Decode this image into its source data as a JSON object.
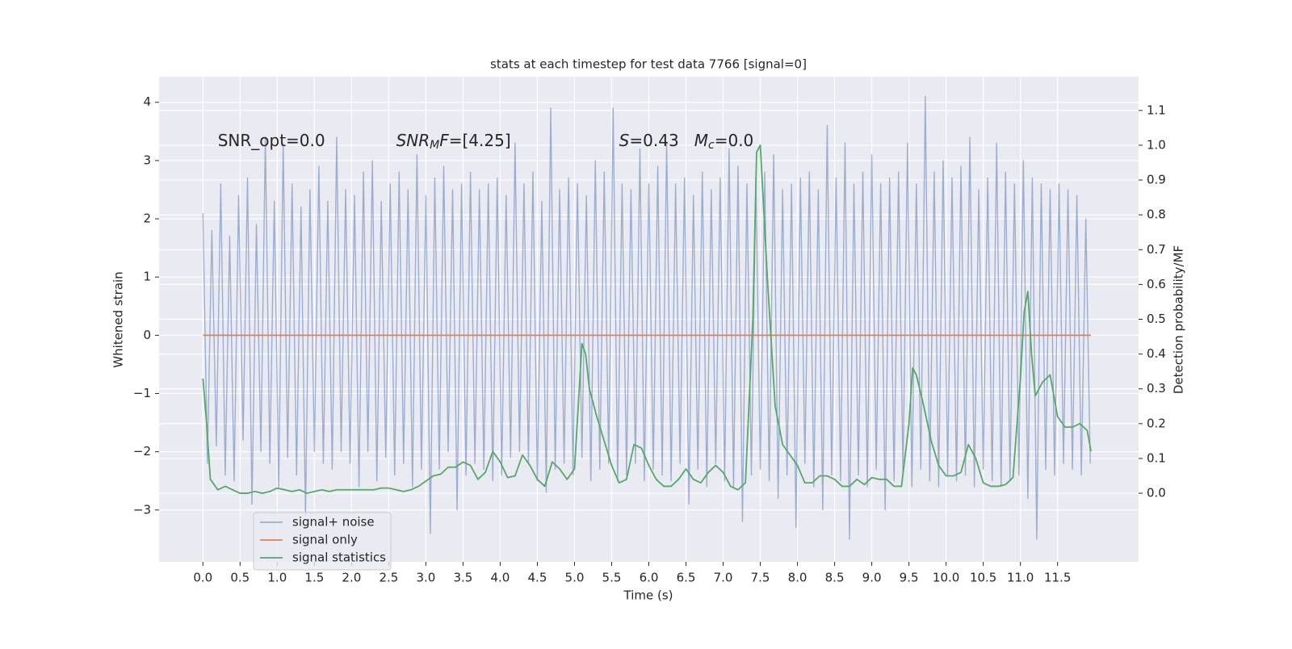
{
  "chart_data": {
    "type": "line",
    "title": "stats at each timestep for test data 7766 [signal=0]",
    "xlabel": "Time (s)",
    "ylabel": "Whitened strain",
    "y2label": "Detection probability/MF",
    "grid": true,
    "legend": "lower left",
    "xlim": [
      -0.59,
      12.59
    ],
    "ylim": [
      -3.89,
      4.44
    ],
    "y2lim": [
      -0.197,
      1.197
    ],
    "xticks": [
      {
        "value": 0,
        "label": "0.0"
      },
      0.5,
      {
        "value": 1,
        "label": "1.0"
      },
      1.5,
      {
        "value": 2,
        "label": "2.0"
      },
      2.5,
      {
        "value": 3,
        "label": "3.0"
      },
      3.5,
      {
        "value": 4,
        "label": "4.0"
      },
      4.5,
      {
        "value": 5,
        "label": "5.0"
      },
      5.5,
      {
        "value": 6,
        "label": "6.0"
      },
      6.5,
      {
        "value": 7,
        "label": "7.0"
      },
      7.5,
      {
        "value": 8,
        "label": "8.0"
      },
      8.5,
      {
        "value": 9,
        "label": "9.0"
      },
      9.5,
      {
        "value": 10,
        "label": "10.0"
      },
      10.5,
      {
        "value": 11,
        "label": "11.0"
      },
      11.5
    ],
    "yticks": [
      {
        "value": -3,
        "label": "−3"
      },
      {
        "value": -2,
        "label": "−2"
      },
      {
        "value": -1,
        "label": "−1"
      },
      0,
      1,
      2,
      3,
      4
    ],
    "y2ticks": [
      {
        "value": 0,
        "label": "0.0"
      },
      0.1,
      0.2,
      0.3,
      0.4,
      0.5,
      0.6,
      0.7,
      0.8,
      0.9,
      {
        "value": 1,
        "label": "1.0"
      },
      1.1
    ],
    "annotations": [
      {
        "x": 0.2,
        "y": 3.33,
        "parts": [
          {
            "text": "SNR_opt=0.0",
            "style": "normal"
          }
        ]
      },
      {
        "x": 2.6,
        "y": 3.33,
        "parts": [
          {
            "text": "SNR",
            "style": "italic"
          },
          {
            "text": "M",
            "style": "italic-sub"
          },
          {
            "text": "F",
            "style": "italic"
          },
          {
            "text": "=[4.25]",
            "style": "normal"
          }
        ]
      },
      {
        "x": 5.6,
        "y": 3.33,
        "parts": [
          {
            "text": "S",
            "style": "italic"
          },
          {
            "text": "=0.43   ",
            "style": "normal"
          },
          {
            "text": "M",
            "style": "italic"
          },
          {
            "text": "c",
            "style": "italic-sub"
          },
          {
            "text": "=0.0",
            "style": "normal"
          }
        ]
      }
    ],
    "series": [
      {
        "name": "signal+ noise",
        "color": "#4c72b0",
        "opacity": 0.5,
        "axis": "y",
        "x": [
          0,
          0.06,
          0.12,
          0.18,
          0.24,
          0.3,
          0.36,
          0.42,
          0.48,
          0.54,
          0.6,
          0.66,
          0.72,
          0.78,
          0.84,
          0.9,
          0.96,
          1.02,
          1.08,
          1.14,
          1.2,
          1.26,
          1.32,
          1.38,
          1.44,
          1.5,
          1.56,
          1.62,
          1.68,
          1.74,
          1.8,
          1.86,
          1.92,
          1.98,
          2.04,
          2.1,
          2.16,
          2.22,
          2.28,
          2.34,
          2.4,
          2.46,
          2.52,
          2.58,
          2.64,
          2.7,
          2.76,
          2.82,
          2.88,
          2.94,
          3,
          3.06,
          3.12,
          3.18,
          3.24,
          3.3,
          3.36,
          3.42,
          3.48,
          3.54,
          3.6,
          3.66,
          3.72,
          3.78,
          3.84,
          3.9,
          3.96,
          4.02,
          4.08,
          4.14,
          4.2,
          4.26,
          4.32,
          4.38,
          4.44,
          4.5,
          4.56,
          4.62,
          4.68,
          4.74,
          4.8,
          4.86,
          4.92,
          4.98,
          5.04,
          5.1,
          5.16,
          5.22,
          5.28,
          5.34,
          5.4,
          5.46,
          5.52,
          5.58,
          5.64,
          5.7,
          5.76,
          5.82,
          5.88,
          5.94,
          6,
          6.06,
          6.12,
          6.18,
          6.24,
          6.3,
          6.36,
          6.42,
          6.48,
          6.54,
          6.6,
          6.66,
          6.72,
          6.78,
          6.84,
          6.9,
          6.96,
          7.02,
          7.08,
          7.14,
          7.2,
          7.26,
          7.32,
          7.38,
          7.44,
          7.5,
          7.56,
          7.62,
          7.68,
          7.74,
          7.8,
          7.86,
          7.92,
          7.98,
          8.04,
          8.1,
          8.16,
          8.22,
          8.28,
          8.34,
          8.4,
          8.46,
          8.52,
          8.58,
          8.64,
          8.7,
          8.76,
          8.82,
          8.88,
          8.94,
          9,
          9.06,
          9.12,
          9.18,
          9.24,
          9.3,
          9.36,
          9.42,
          9.48,
          9.54,
          9.6,
          9.66,
          9.72,
          9.78,
          9.84,
          9.9,
          9.96,
          10.02,
          10.08,
          10.14,
          10.2,
          10.26,
          10.32,
          10.38,
          10.44,
          10.5,
          10.56,
          10.62,
          10.68,
          10.74,
          10.8,
          10.86,
          10.92,
          10.98,
          11.04,
          11.1,
          11.16,
          11.22,
          11.28,
          11.34,
          11.4,
          11.46,
          11.52,
          11.58,
          11.64,
          11.7,
          11.76,
          11.82,
          11.88,
          11.94
        ],
        "values": [
          2.1,
          -2.2,
          1.8,
          -1.9,
          2.6,
          -2.4,
          1.7,
          -2.5,
          2.4,
          -1.8,
          2.7,
          -2.9,
          1.9,
          -2.0,
          3.4,
          -2.2,
          2.3,
          -2.6,
          3.3,
          -2.1,
          2.6,
          -2.4,
          2.2,
          -3.1,
          2.5,
          -2.0,
          2.9,
          -2.2,
          2.3,
          -2.3,
          3.4,
          -2.0,
          2.5,
          -2.2,
          2.4,
          -2.6,
          2.8,
          -2.0,
          3.0,
          -2.5,
          2.3,
          -2.1,
          2.6,
          -2.4,
          2.8,
          -2.2,
          2.5,
          -2.6,
          3.1,
          -2.3,
          2.4,
          -3.4,
          2.7,
          -2.3,
          2.9,
          -2.0,
          2.5,
          -3.0,
          2.6,
          -2.4,
          2.8,
          -2.2,
          2.5,
          -2.3,
          2.6,
          -2.5,
          2.7,
          -2.4,
          2.4,
          -2.1,
          3.3,
          -2.0,
          2.6,
          -2.2,
          2.8,
          -2.5,
          2.3,
          -2.7,
          3.9,
          -2.3,
          2.5,
          -2.2,
          2.7,
          -2.4,
          2.6,
          -2.1,
          2.4,
          -2.5,
          3.0,
          -2.3,
          2.8,
          -2.2,
          3.9,
          -2.5,
          2.6,
          -2.4,
          2.5,
          -2.2,
          3.2,
          -2.5,
          2.6,
          -2.3,
          2.9,
          -2.4,
          3.3,
          -2.5,
          2.6,
          -2.2,
          2.7,
          -2.9,
          2.4,
          -2.3,
          2.8,
          -2.6,
          2.5,
          -2.2,
          2.7,
          -2.5,
          3.2,
          -2.6,
          2.9,
          -3.2,
          2.6,
          -2.4,
          2.7,
          -2.3,
          2.8,
          -2.5,
          3.1,
          -2.8,
          2.5,
          -2.4,
          2.6,
          -3.3,
          2.7,
          -2.2,
          2.8,
          -2.6,
          2.5,
          -3.0,
          3.6,
          -2.4,
          2.7,
          -2.5,
          3.3,
          -3.5,
          2.6,
          -2.4,
          2.8,
          -2.6,
          3.1,
          -2.3,
          2.6,
          -3.0,
          2.7,
          -2.5,
          2.8,
          -2.4,
          3.3,
          -2.6,
          2.6,
          -2.3,
          4.1,
          -2.5,
          2.8,
          -2.6,
          3.0,
          -2.4,
          2.7,
          -2.5,
          2.9,
          -2.4,
          3.4,
          -2.6,
          2.5,
          -2.3,
          2.7,
          -2.5,
          3.3,
          -2.6,
          2.8,
          -2.5,
          2.6,
          -2.4,
          3.0,
          -2.8,
          2.7,
          -3.5,
          2.6,
          -2.3,
          2.5,
          -2.4,
          2.6,
          -2.2,
          2.5,
          -2.3,
          2.4,
          -2.4,
          2.0,
          -2.2
        ]
      },
      {
        "name": "signal only",
        "color": "#dd8452",
        "opacity": 1,
        "axis": "y",
        "x": [
          0,
          11.95
        ],
        "values": [
          0,
          0
        ]
      },
      {
        "name": "signal statistics",
        "color": "#55a868",
        "opacity": 1,
        "axis": "y2",
        "x": [
          0,
          0.05,
          0.1,
          0.2,
          0.3,
          0.4,
          0.5,
          0.6,
          0.7,
          0.8,
          0.9,
          1,
          1.1,
          1.2,
          1.3,
          1.4,
          1.5,
          1.6,
          1.7,
          1.8,
          1.9,
          2,
          2.1,
          2.2,
          2.3,
          2.4,
          2.5,
          2.6,
          2.7,
          2.8,
          2.9,
          3,
          3.1,
          3.2,
          3.3,
          3.4,
          3.5,
          3.6,
          3.7,
          3.8,
          3.9,
          4,
          4.1,
          4.2,
          4.3,
          4.4,
          4.5,
          4.6,
          4.7,
          4.8,
          4.9,
          5,
          5.05,
          5.1,
          5.15,
          5.2,
          5.3,
          5.4,
          5.5,
          5.6,
          5.7,
          5.8,
          5.9,
          6,
          6.1,
          6.2,
          6.3,
          6.4,
          6.5,
          6.6,
          6.7,
          6.8,
          6.9,
          7,
          7.1,
          7.2,
          7.3,
          7.4,
          7.45,
          7.5,
          7.6,
          7.7,
          7.8,
          7.9,
          8,
          8.1,
          8.2,
          8.3,
          8.4,
          8.5,
          8.6,
          8.7,
          8.8,
          8.9,
          9,
          9.1,
          9.2,
          9.3,
          9.4,
          9.5,
          9.55,
          9.6,
          9.7,
          9.8,
          9.9,
          10,
          10.1,
          10.2,
          10.3,
          10.4,
          10.5,
          10.6,
          10.7,
          10.8,
          10.9,
          11,
          11.05,
          11.1,
          11.15,
          11.2,
          11.3,
          11.4,
          11.5,
          11.6,
          11.7,
          11.8,
          11.9,
          11.95
        ],
        "values": [
          0.33,
          0.2,
          0.04,
          0.01,
          0.02,
          0.01,
          0.0,
          0.0,
          0.005,
          0.0,
          0.005,
          0.015,
          0.01,
          0.005,
          0.01,
          0.0,
          0.005,
          0.01,
          0.005,
          0.01,
          0.01,
          0.01,
          0.01,
          0.01,
          0.01,
          0.015,
          0.015,
          0.01,
          0.005,
          0.01,
          0.02,
          0.035,
          0.05,
          0.055,
          0.075,
          0.075,
          0.09,
          0.08,
          0.04,
          0.06,
          0.12,
          0.09,
          0.045,
          0.05,
          0.11,
          0.08,
          0.04,
          0.02,
          0.09,
          0.07,
          0.04,
          0.07,
          0.25,
          0.43,
          0.4,
          0.3,
          0.22,
          0.15,
          0.08,
          0.03,
          0.04,
          0.14,
          0.13,
          0.08,
          0.04,
          0.02,
          0.02,
          0.04,
          0.07,
          0.04,
          0.03,
          0.06,
          0.08,
          0.06,
          0.02,
          0.01,
          0.03,
          0.5,
          0.98,
          1.0,
          0.6,
          0.25,
          0.14,
          0.11,
          0.08,
          0.03,
          0.03,
          0.05,
          0.05,
          0.04,
          0.02,
          0.02,
          0.04,
          0.025,
          0.045,
          0.04,
          0.04,
          0.02,
          0.02,
          0.2,
          0.36,
          0.34,
          0.25,
          0.15,
          0.08,
          0.05,
          0.05,
          0.06,
          0.14,
          0.1,
          0.03,
          0.02,
          0.02,
          0.025,
          0.045,
          0.33,
          0.52,
          0.58,
          0.4,
          0.28,
          0.32,
          0.34,
          0.22,
          0.19,
          0.19,
          0.2,
          0.18,
          0.12
        ]
      }
    ]
  }
}
